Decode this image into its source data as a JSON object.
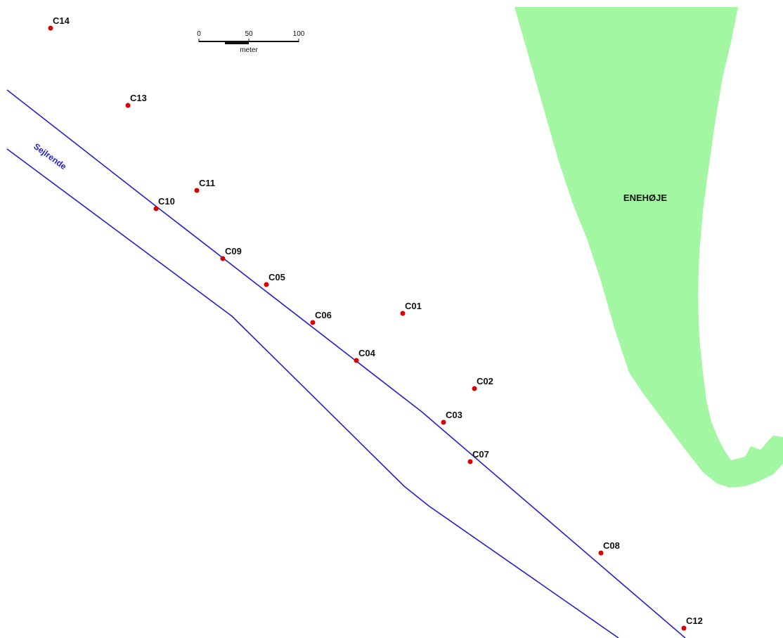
{
  "colors": {
    "land": "#a3f7a3",
    "channel": "#2222cc",
    "point": "#d80000",
    "text": "#111111"
  },
  "land": {
    "name": "ENEHØJE"
  },
  "channel": {
    "name": "Sejlrende"
  },
  "scale_bar": {
    "unit": "meter",
    "ticks": [
      "0",
      "50",
      "100"
    ]
  },
  "stations": [
    {
      "id": "C01",
      "label": "C01"
    },
    {
      "id": "C02",
      "label": "C02"
    },
    {
      "id": "C03",
      "label": "C03"
    },
    {
      "id": "C04",
      "label": "C04"
    },
    {
      "id": "C05",
      "label": "C05"
    },
    {
      "id": "C06",
      "label": "C06"
    },
    {
      "id": "C07",
      "label": "C07"
    },
    {
      "id": "C08",
      "label": "C08"
    },
    {
      "id": "C09",
      "label": "C09"
    },
    {
      "id": "C10",
      "label": "C10"
    },
    {
      "id": "C11",
      "label": "C11"
    },
    {
      "id": "C12",
      "label": "C12"
    },
    {
      "id": "C13",
      "label": "C13"
    },
    {
      "id": "C14",
      "label": "C14"
    }
  ]
}
